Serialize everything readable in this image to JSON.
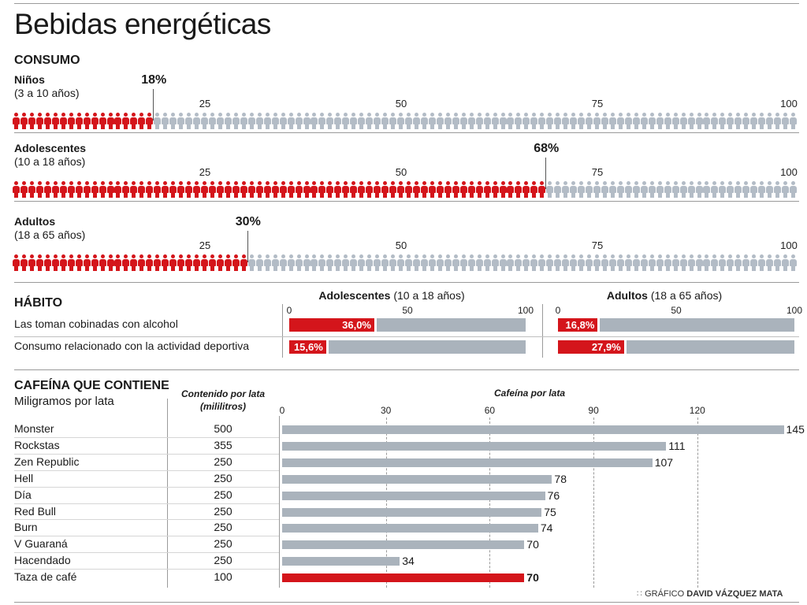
{
  "title": "Bebidas energéticas",
  "consumo": {
    "heading": "CONSUMO",
    "scale_ticks": [
      "25",
      "50",
      "75",
      "100"
    ],
    "groups": [
      {
        "name": "Niños",
        "range": "(3 a 10 años)",
        "percent": 18,
        "percent_label": "18%"
      },
      {
        "name": "Adolescentes",
        "range": "(10 a 18 años)",
        "percent": 68,
        "percent_label": "68%"
      },
      {
        "name": "Adultos",
        "range": "(18 a 65 años)",
        "percent": 30,
        "percent_label": "30%"
      }
    ]
  },
  "habito": {
    "heading": "HÁBITO",
    "panels": [
      {
        "title_bold": "Adolescentes",
        "title_rest": " (10 a 18 años)",
        "ticks": [
          "0",
          "50",
          "100"
        ]
      },
      {
        "title_bold": "Adultos",
        "title_rest": " (18 a 65 años)",
        "ticks": [
          "0",
          "50",
          "100"
        ]
      }
    ],
    "rows": [
      {
        "label": "Las toman cobinadas con alcohol",
        "values": [
          36.0,
          16.8
        ],
        "value_labels": [
          "36,0%",
          "16,8%"
        ]
      },
      {
        "label": "Consumo relacionado con la actividad deportiva",
        "values": [
          15.6,
          27.9
        ],
        "value_labels": [
          "15,6%",
          "27,9%"
        ]
      }
    ]
  },
  "cafeina": {
    "heading": "CAFEÍNA QUE CONTIENE",
    "subheading": "Miligramos por lata",
    "col_volume_line1": "Contenido por lata",
    "col_volume_line2": "(mililitros)",
    "col_chart": "Cafeína por lata",
    "ticks": [
      "0",
      "30",
      "60",
      "90",
      "120"
    ]
  },
  "colors": {
    "highlight": "#d4151b",
    "neutral": "#aab3bc"
  },
  "chart_data": [
    {
      "type": "bar",
      "title": "CONSUMO",
      "categories": [
        "Niños (3 a 10 años)",
        "Adolescentes (10 a 18 años)",
        "Adultos (18 a 65 años)"
      ],
      "values": [
        18,
        68,
        30
      ],
      "xlim": [
        0,
        100
      ],
      "unit": "%"
    },
    {
      "type": "bar",
      "title": "HÁBITO",
      "categories": [
        "Las toman cobinadas con alcohol",
        "Consumo relacionado con la actividad deportiva"
      ],
      "series": [
        {
          "name": "Adolescentes (10 a 18 años)",
          "values": [
            36.0,
            15.6
          ]
        },
        {
          "name": "Adultos (18 a 65 años)",
          "values": [
            16.8,
            27.9
          ]
        }
      ],
      "xlim": [
        0,
        100
      ],
      "unit": "%"
    },
    {
      "type": "bar",
      "title": "CAFEÍNA QUE CONTIENE",
      "subtitle": "Miligramos por lata",
      "xlabel": "Cafeína por lata",
      "categories": [
        "Monster",
        "Rockstas",
        "Zen Republic",
        "Hell",
        "Día",
        "Red Bull",
        "Burn",
        "V Guaraná",
        "Hacendado",
        "Taza de café"
      ],
      "volumes_ml": [
        500,
        355,
        250,
        250,
        250,
        250,
        250,
        250,
        250,
        100
      ],
      "values": [
        145,
        111,
        107,
        78,
        76,
        75,
        74,
        70,
        34,
        70
      ],
      "highlight": "Taza de café",
      "xlim": [
        0,
        145
      ],
      "xticks": [
        0,
        30,
        60,
        90,
        120
      ]
    }
  ],
  "credit": {
    "prefix": "GRÁFICO",
    "author": "DAVID VÁZQUEZ MATA"
  }
}
